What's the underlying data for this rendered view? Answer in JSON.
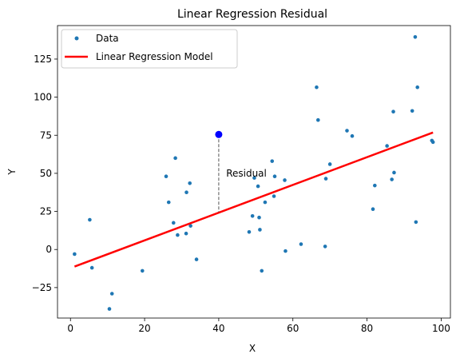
{
  "chart_data": {
    "type": "scatter",
    "title": "Linear Regression Residual",
    "xlabel": "X",
    "ylabel": "Y",
    "xlim": [
      -3.5,
      102.5
    ],
    "ylim": [
      -45,
      147
    ],
    "xticks": [
      0,
      20,
      40,
      60,
      80,
      100
    ],
    "yticks": [
      -25,
      0,
      25,
      50,
      75,
      100,
      125
    ],
    "grid": false,
    "legend_placement": "top-left",
    "series": [
      {
        "name": "Data",
        "kind": "scatter",
        "color": "#1f77b4",
        "points": [
          [
            1.1,
            -3
          ],
          [
            5.2,
            19.5
          ],
          [
            5.8,
            -12
          ],
          [
            10.5,
            -39
          ],
          [
            11.2,
            -29
          ],
          [
            19.4,
            -14
          ],
          [
            25.8,
            48
          ],
          [
            26.5,
            31
          ],
          [
            27.8,
            17.5
          ],
          [
            28.3,
            60
          ],
          [
            28.9,
            9.5
          ],
          [
            31.2,
            10.5
          ],
          [
            31.3,
            37.5
          ],
          [
            32.2,
            43.5
          ],
          [
            32.4,
            15.5
          ],
          [
            34.0,
            -6.5
          ],
          [
            48.2,
            11.5
          ],
          [
            49.1,
            22
          ],
          [
            49.6,
            47
          ],
          [
            50.6,
            41.5
          ],
          [
            50.9,
            21
          ],
          [
            51.1,
            13
          ],
          [
            51.6,
            -14
          ],
          [
            52.5,
            31
          ],
          [
            54.4,
            58
          ],
          [
            55.1,
            48
          ],
          [
            54.9,
            35
          ],
          [
            57.8,
            45.5
          ],
          [
            58.0,
            -1
          ],
          [
            62.2,
            3.5
          ],
          [
            66.4,
            106.5
          ],
          [
            66.8,
            85
          ],
          [
            68.7,
            2
          ],
          [
            68.9,
            46.5
          ],
          [
            70.0,
            56
          ],
          [
            74.6,
            78
          ],
          [
            76.0,
            74.5
          ],
          [
            81.6,
            26.5
          ],
          [
            82.1,
            42
          ],
          [
            85.4,
            68
          ],
          [
            86.7,
            46
          ],
          [
            87.1,
            90.5
          ],
          [
            87.3,
            50.5
          ],
          [
            92.2,
            91
          ],
          [
            93.0,
            139.5
          ],
          [
            93.2,
            18
          ],
          [
            93.6,
            106.5
          ],
          [
            97.5,
            71.5
          ],
          [
            97.8,
            70.5
          ]
        ]
      },
      {
        "name": "Linear Regression Model",
        "kind": "line",
        "color": "#ff0000",
        "points": [
          [
            1.1,
            -11.2
          ],
          [
            97.8,
            76.8
          ]
        ]
      }
    ],
    "highlight_point": {
      "x": 40,
      "y": 75.5,
      "color": "#0000ff"
    },
    "residual": {
      "x": 40,
      "y_from": 75.5,
      "y_to": 24.5,
      "label": "Residual",
      "label_x": 42,
      "label_y": 50
    }
  }
}
